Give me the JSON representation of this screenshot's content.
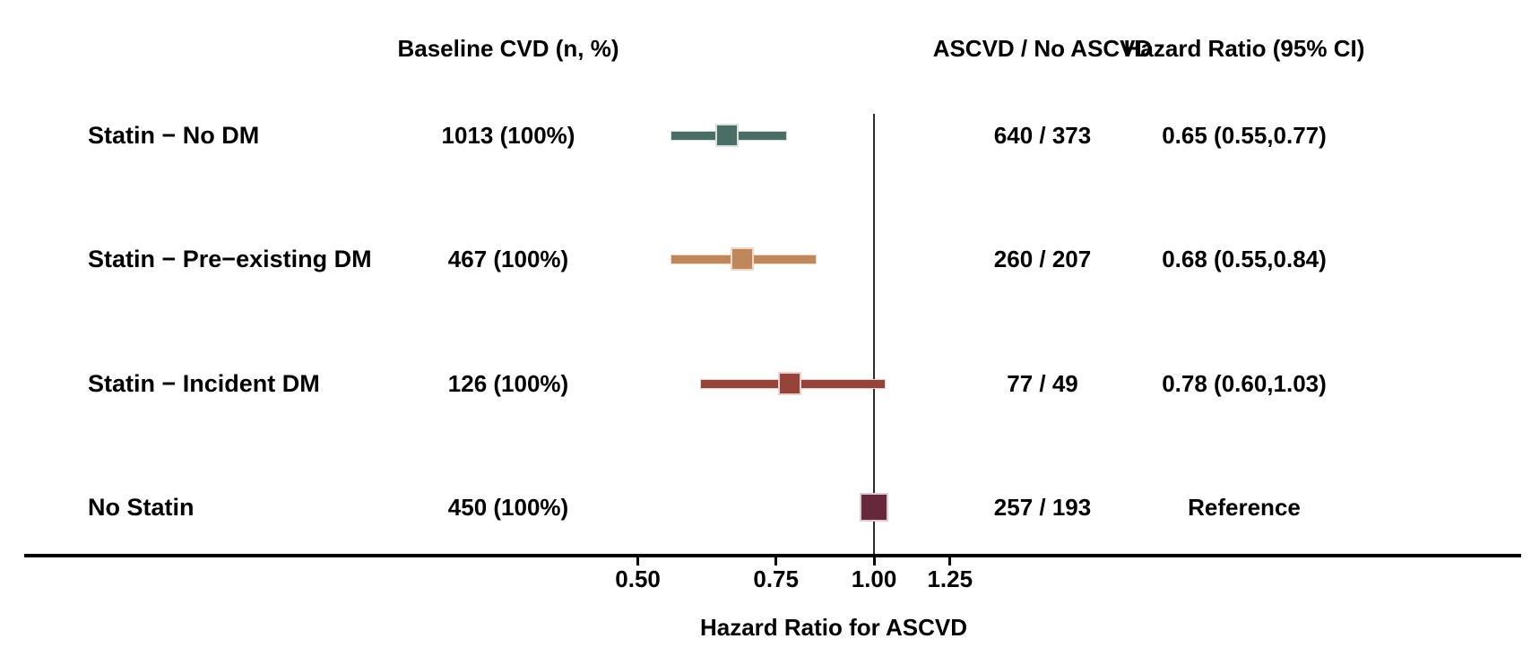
{
  "headers": {
    "baseline": "Baseline CVD (n, %)",
    "ascvd": "ASCVD / No ASCVD",
    "hazard_ratio": "Hazard Ratio (95% CI)"
  },
  "chart_data": {
    "type": "forest",
    "xlabel": "Hazard Ratio for ASCVD",
    "x_scale": "log",
    "x_ticks": [
      0.5,
      0.75,
      1.0,
      1.25
    ],
    "x_tick_labels": [
      "0.50",
      "0.75",
      "1.00",
      "1.25"
    ],
    "reference_line": 1.0,
    "axis_color": "#000000",
    "rows": [
      {
        "label": "Statin − No DM",
        "baseline_cvd": "1013 (100%)",
        "ascvd_counts": "640 / 373",
        "hr_text": "0.65 (0.55,0.77)",
        "hr": 0.65,
        "ci_low": 0.55,
        "ci_high": 0.77,
        "color": "#4a6e66",
        "halo": "#d7e0dd"
      },
      {
        "label": "Statin − Pre−existing DM",
        "baseline_cvd": "467 (100%)",
        "ascvd_counts": "260 / 207",
        "hr_text": "0.68 (0.55,0.84)",
        "hr": 0.68,
        "ci_low": 0.55,
        "ci_high": 0.84,
        "color": "#c0885a",
        "halo": "#eed9c3"
      },
      {
        "label": "Statin − Incident DM",
        "baseline_cvd": "126 (100%)",
        "ascvd_counts": "77 / 49",
        "hr_text": "0.78 (0.60,1.03)",
        "hr": 0.78,
        "ci_low": 0.6,
        "ci_high": 1.03,
        "color": "#96443a",
        "halo": "#e9d2cd"
      },
      {
        "label": "No Statin",
        "baseline_cvd": "450 (100%)",
        "ascvd_counts": "257 / 193",
        "hr_text": "Reference",
        "hr": 1.0,
        "ci_low": null,
        "ci_high": null,
        "color": "#66293b",
        "halo": "#ddc9cf"
      }
    ]
  }
}
